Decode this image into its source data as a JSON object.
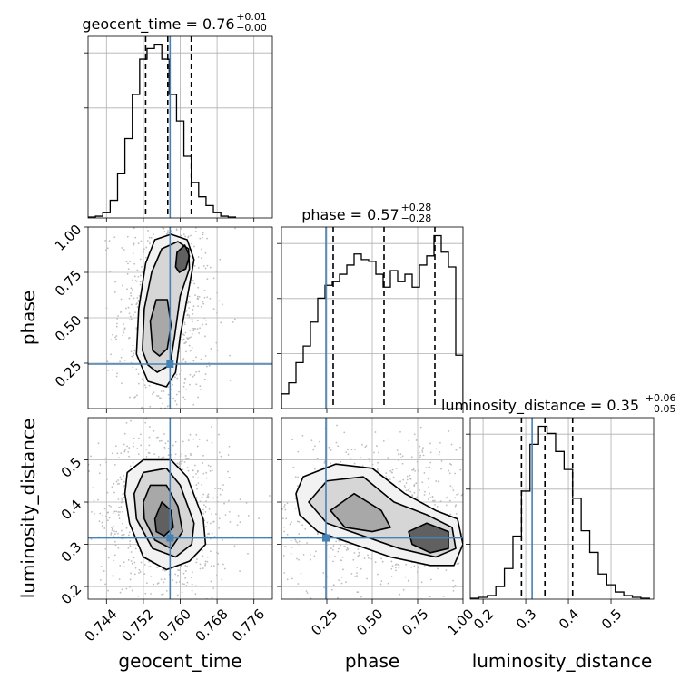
{
  "chart_data": {
    "type": "corner",
    "parameters": [
      "geocent_time",
      "phase",
      "luminosity_distance"
    ],
    "axis_labels": {
      "geocent_time": "geocent_time",
      "phase": "phase",
      "luminosity_distance": "luminosity_distance"
    },
    "ranges": {
      "geocent_time": [
        0.74,
        0.78
      ],
      "phase": [
        0.0,
        1.0
      ],
      "luminosity_distance": [
        0.17,
        0.6
      ]
    },
    "ticks": {
      "geocent_time": [
        "0.744",
        "0.752",
        "0.760",
        "0.768",
        "0.776"
      ],
      "phase": [
        "0.25",
        "0.50",
        "0.75",
        "1.00"
      ],
      "luminosity_distance": [
        "0.2",
        "0.3",
        "0.4",
        "0.5"
      ]
    },
    "truths": {
      "geocent_time": 0.7578,
      "phase": 0.245,
      "luminosity_distance": 0.315
    },
    "titles": [
      {
        "param": "geocent_time",
        "text": "geocent_time = 0.76",
        "plus": "+0.01",
        "minus": "−0.00"
      },
      {
        "param": "phase",
        "text": "phase = 0.57",
        "plus": "+0.28",
        "minus": "−0.28"
      },
      {
        "param": "luminosity_distance",
        "text": "luminosity_distance = 0.35",
        "plus": "+0.06",
        "minus": "−0.05"
      }
    ],
    "quantiles": {
      "geocent_time": [
        0.7525,
        0.7573,
        0.7624
      ],
      "phase": [
        0.285,
        0.565,
        0.845
      ],
      "luminosity_distance": [
        0.29,
        0.345,
        0.41
      ]
    },
    "histograms": {
      "geocent_time": {
        "edges": [
          0.74,
          0.7416,
          0.7432,
          0.7448,
          0.7464,
          0.748,
          0.7496,
          0.7512,
          0.7528,
          0.7544,
          0.756,
          0.7576,
          0.7592,
          0.7608,
          0.7624,
          0.764,
          0.7656,
          0.7672,
          0.7688,
          0.7704,
          0.772
        ],
        "counts": [
          0.5,
          1,
          3,
          10,
          25,
          45,
          70,
          90,
          96,
          98,
          90,
          70,
          55,
          35,
          20,
          12,
          7,
          3,
          1,
          0.5
        ]
      },
      "phase": {
        "edges": [
          0.0,
          0.04,
          0.08,
          0.12,
          0.16,
          0.2,
          0.24,
          0.28,
          0.32,
          0.36,
          0.4,
          0.44,
          0.48,
          0.52,
          0.56,
          0.6,
          0.64,
          0.68,
          0.72,
          0.76,
          0.8,
          0.84,
          0.88,
          0.92,
          0.96,
          1.0
        ],
        "counts": [
          8,
          14,
          25,
          34,
          47,
          60,
          67,
          69,
          73,
          78,
          84,
          81,
          80,
          73,
          66,
          75,
          69,
          73,
          66,
          78,
          83,
          94,
          85,
          77,
          29
        ]
      },
      "luminosity_distance": {
        "edges": [
          0.17,
          0.19,
          0.21,
          0.23,
          0.25,
          0.27,
          0.29,
          0.31,
          0.33,
          0.35,
          0.37,
          0.39,
          0.41,
          0.43,
          0.45,
          0.47,
          0.49,
          0.51,
          0.53,
          0.55,
          0.57,
          0.59
        ],
        "counts": [
          0.5,
          1,
          2,
          7,
          17,
          35,
          60,
          86,
          96,
          92,
          82,
          72,
          56,
          38,
          26,
          14,
          8,
          4,
          2,
          1,
          0.5
        ]
      }
    },
    "contours_2d": [
      {
        "x": "geocent_time",
        "y": "phase",
        "levels": [
          [
            [
              0.7505,
              0.3
            ],
            [
              0.751,
              0.55
            ],
            [
              0.7525,
              0.8
            ],
            [
              0.7545,
              0.93
            ],
            [
              0.758,
              0.96
            ],
            [
              0.7615,
              0.93
            ],
            [
              0.763,
              0.82
            ],
            [
              0.7618,
              0.65
            ],
            [
              0.76,
              0.4
            ],
            [
              0.759,
              0.2
            ],
            [
              0.757,
              0.12
            ],
            [
              0.753,
              0.15
            ]
          ],
          [
            [
              0.7518,
              0.32
            ],
            [
              0.7522,
              0.55
            ],
            [
              0.7538,
              0.75
            ],
            [
              0.756,
              0.88
            ],
            [
              0.7595,
              0.92
            ],
            [
              0.7618,
              0.88
            ],
            [
              0.762,
              0.77
            ],
            [
              0.76,
              0.62
            ],
            [
              0.7588,
              0.4
            ],
            [
              0.7578,
              0.24
            ],
            [
              0.755,
              0.2
            ],
            [
              0.753,
              0.24
            ]
          ],
          [
            [
              0.754,
              0.32
            ],
            [
              0.7535,
              0.48
            ],
            [
              0.7548,
              0.6
            ],
            [
              0.7572,
              0.6
            ],
            [
              0.758,
              0.46
            ],
            [
              0.7572,
              0.33
            ],
            [
              0.7555,
              0.29
            ]
          ],
          [
            [
              0.759,
              0.78
            ],
            [
              0.7593,
              0.86
            ],
            [
              0.761,
              0.9
            ],
            [
              0.762,
              0.84
            ],
            [
              0.7612,
              0.77
            ],
            [
              0.7598,
              0.75
            ]
          ]
        ]
      },
      {
        "x": "geocent_time",
        "y": "luminosity_distance",
        "levels": [
          [
            [
              0.748,
              0.42
            ],
            [
              0.7485,
              0.47
            ],
            [
              0.752,
              0.5
            ],
            [
              0.758,
              0.5
            ],
            [
              0.7615,
              0.46
            ],
            [
              0.765,
              0.36
            ],
            [
              0.7655,
              0.3
            ],
            [
              0.762,
              0.26
            ],
            [
              0.757,
              0.24
            ],
            [
              0.752,
              0.27
            ],
            [
              0.749,
              0.35
            ]
          ],
          [
            [
              0.75,
              0.42
            ],
            [
              0.752,
              0.47
            ],
            [
              0.757,
              0.48
            ],
            [
              0.76,
              0.44
            ],
            [
              0.763,
              0.35
            ],
            [
              0.7625,
              0.3
            ],
            [
              0.759,
              0.27
            ],
            [
              0.754,
              0.29
            ],
            [
              0.7505,
              0.36
            ]
          ],
          [
            [
              0.752,
              0.4
            ],
            [
              0.7535,
              0.44
            ],
            [
              0.757,
              0.44
            ],
            [
              0.7595,
              0.39
            ],
            [
              0.7605,
              0.33
            ],
            [
              0.758,
              0.29
            ],
            [
              0.7545,
              0.31
            ],
            [
              0.7522,
              0.36
            ]
          ],
          [
            [
              0.7545,
              0.36
            ],
            [
              0.756,
              0.4
            ],
            [
              0.758,
              0.38
            ],
            [
              0.7585,
              0.34
            ],
            [
              0.7565,
              0.32
            ],
            [
              0.7548,
              0.33
            ]
          ]
        ]
      },
      {
        "x": "phase",
        "y": "luminosity_distance",
        "levels": [
          [
            [
              0.08,
              0.42
            ],
            [
              0.12,
              0.46
            ],
            [
              0.3,
              0.49
            ],
            [
              0.5,
              0.48
            ],
            [
              0.68,
              0.42
            ],
            [
              0.85,
              0.38
            ],
            [
              0.97,
              0.36
            ],
            [
              1.0,
              0.3
            ],
            [
              0.95,
              0.25
            ],
            [
              0.82,
              0.25
            ],
            [
              0.6,
              0.27
            ],
            [
              0.4,
              0.3
            ],
            [
              0.2,
              0.33
            ],
            [
              0.1,
              0.37
            ]
          ],
          [
            [
              0.15,
              0.4
            ],
            [
              0.25,
              0.45
            ],
            [
              0.45,
              0.46
            ],
            [
              0.62,
              0.4
            ],
            [
              0.8,
              0.37
            ],
            [
              0.94,
              0.34
            ],
            [
              0.96,
              0.29
            ],
            [
              0.85,
              0.27
            ],
            [
              0.65,
              0.29
            ],
            [
              0.45,
              0.32
            ],
            [
              0.25,
              0.35
            ]
          ],
          [
            [
              0.27,
              0.38
            ],
            [
              0.4,
              0.42
            ],
            [
              0.55,
              0.38
            ],
            [
              0.6,
              0.34
            ],
            [
              0.5,
              0.33
            ],
            [
              0.35,
              0.34
            ]
          ],
          [
            [
              0.7,
              0.33
            ],
            [
              0.8,
              0.35
            ],
            [
              0.92,
              0.33
            ],
            [
              0.92,
              0.29
            ],
            [
              0.82,
              0.28
            ],
            [
              0.72,
              0.3
            ]
          ]
        ]
      }
    ],
    "colors": {
      "truth": "#4682b4",
      "line": "#000000",
      "grid": "#b0b0b0",
      "scatter": "#bdbdbd",
      "density": "#444444"
    },
    "grid": true
  }
}
